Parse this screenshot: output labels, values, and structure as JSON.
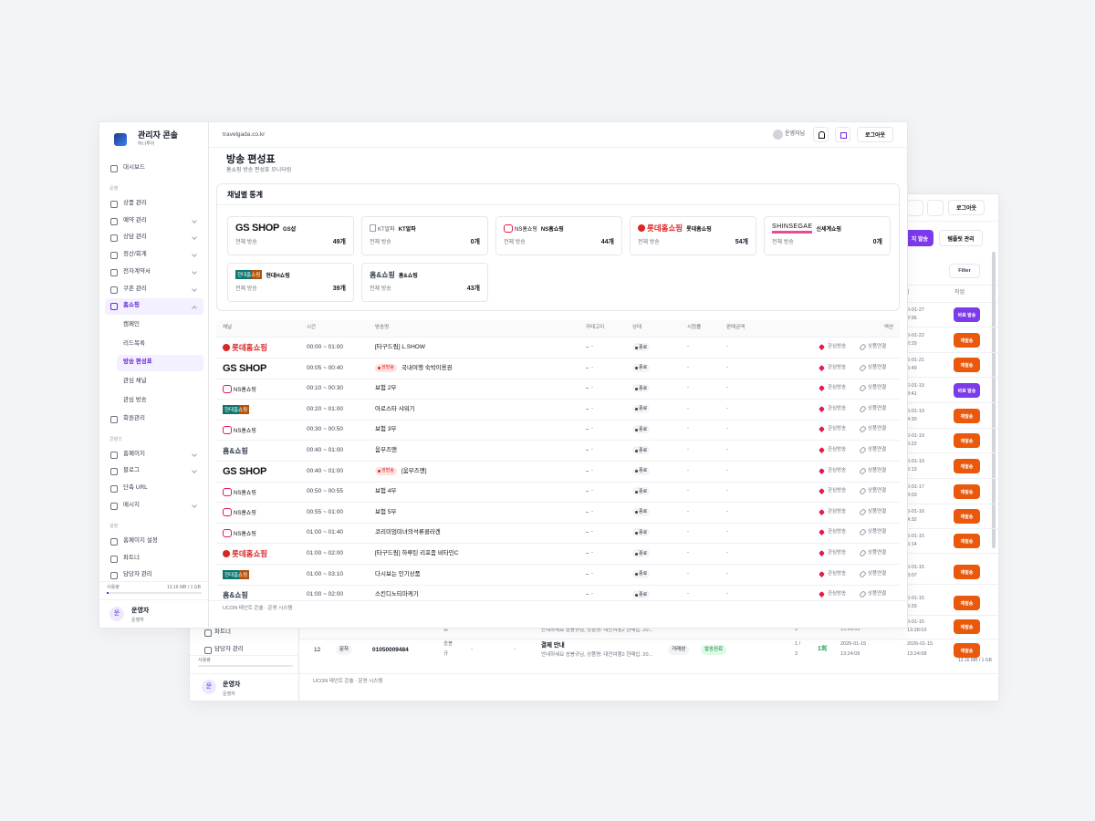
{
  "back_window": {
    "logout_button": "로그아웃",
    "send_button": "지 발송",
    "template_button": "템플릿 관리",
    "filter_button": "Filter",
    "columns": [
      "일",
      "작업"
    ],
    "rows": [
      {
        "date": "6-01-27",
        "time": "2:56",
        "action": "바로 발송"
      },
      {
        "date": "6-01-22",
        "time": "2:29",
        "action": "재발송"
      },
      {
        "date": "6-01-21",
        "time": "5:49",
        "action": "재발송"
      },
      {
        "date": "6-01-19",
        "time": "3:41",
        "action": "바로 발송"
      },
      {
        "date": "6-01-19",
        "time": "4:30",
        "action": "재발송"
      },
      {
        "date": "6-01-19",
        "time": "6:22",
        "action": "재발송"
      },
      {
        "date": "6-01-19",
        "time": "5:13",
        "action": "재발송"
      },
      {
        "date": "6-01-17",
        "time": "8:03",
        "action": "재발송"
      },
      {
        "date": "6-01-16",
        "time": "4:32",
        "action": "재발송"
      },
      {
        "date": "6-01-15",
        "time": "5:14",
        "action": "재발송"
      },
      {
        "date": "6-01-15",
        "time": "8:07",
        "action": "재발송"
      },
      {
        "date": "6-01-15",
        "time": "5:29",
        "action": "재발송"
      },
      {
        "date": "6-01-15",
        "time": "13:28:03",
        "action": "재발송"
      }
    ],
    "partial_row": {
      "agent": "급",
      "preview": "안내하세요 송봉규님, 상품명: 대전여행2 한때입. 20...",
      "count": "3",
      "sent": "13:28:05"
    },
    "full_row": {
      "no": "12",
      "type": "문자",
      "phone": "01050009484",
      "agent_lines": [
        "송봉",
        "규"
      ],
      "col_a": "-",
      "col_b": "-",
      "title": "결제 안내",
      "preview": "안내하세요 송봉규님, 상품명: 대전여행2 한때입. 20...",
      "category": "거래성",
      "status": "발송완료",
      "count_lines": [
        "1 /",
        "3"
      ],
      "retries": "1회",
      "sent": [
        "2026-01-15",
        "13:24:09"
      ],
      "created": [
        "2026-01-15",
        "13:24:08"
      ],
      "action": "재발송"
    },
    "sidebar": {
      "items": [
        "파트너",
        "담당자 관리"
      ],
      "usage_label": "사용량",
      "usage_value": "13.16 MB / 1 GB",
      "avatar": "운",
      "user_name": "운영자",
      "user_role": "운영자"
    },
    "footer": "UCON 테넌트 콘솔 · 운영 시스템"
  },
  "sidebar": {
    "brand_title": "관리자 콘솔",
    "brand_subtitle": "하나투어",
    "dashboard": "대시보드",
    "sections": [
      {
        "title": "운영",
        "items": [
          {
            "label": "상품 관리"
          },
          {
            "label": "예약 관리",
            "chevron": "down"
          },
          {
            "label": "상담 관리",
            "chevron": "down"
          },
          {
            "label": "정산/회계",
            "chevron": "down"
          },
          {
            "label": "전자계약서",
            "chevron": "down"
          },
          {
            "label": "쿠폰 관리",
            "chevron": "down"
          },
          {
            "label": "홈쇼핑",
            "chevron": "up",
            "active": true,
            "children": [
              {
                "label": "캠페인"
              },
              {
                "label": "리드목록"
              },
              {
                "label": "방송 편성표",
                "active": true
              },
              {
                "label": "관심 채널"
              },
              {
                "label": "관심 방송"
              }
            ]
          },
          {
            "label": "회원관리"
          }
        ]
      },
      {
        "title": "콘텐츠",
        "items": [
          {
            "label": "홈페이지",
            "chevron": "down"
          },
          {
            "label": "블로그",
            "chevron": "down"
          },
          {
            "label": "단축 URL"
          },
          {
            "label": "메시지",
            "chevron": "down"
          }
        ]
      },
      {
        "title": "설정",
        "items": [
          {
            "label": "홈페이지 설정"
          },
          {
            "label": "파트너"
          },
          {
            "label": "담당자 관리"
          }
        ]
      }
    ],
    "usage_label": "사용량",
    "usage_value": "13.16 MB / 1 GB",
    "avatar": "운",
    "user_name": "운영자",
    "user_role": "운영자"
  },
  "topbar": {
    "url": "travelgada.co.kr",
    "user": "운영자님",
    "logout": "로그아웃"
  },
  "header": {
    "title": "방송 편성표",
    "subtitle": "홈쇼핑 방송 편성표 모니터링"
  },
  "stats": {
    "title": "채널별 통계",
    "total_label": "전체 방송",
    "channels": [
      {
        "logo": "GS SHOP",
        "name": "GS샵",
        "count": "49개"
      },
      {
        "logo": "KT알파",
        "name": "KT알파",
        "count": "0개"
      },
      {
        "logo": "NS홈쇼핑",
        "name": "NS홈쇼핑",
        "count": "44개"
      },
      {
        "logo": "롯데홈쇼핑",
        "name": "롯데홈쇼핑",
        "count": "54개"
      },
      {
        "logo": "SHINSEGAE",
        "name": "신세계쇼핑",
        "count": "0개"
      },
      {
        "logo": "현대홈쇼핑",
        "name": "현대H쇼핑",
        "count": "39개"
      },
      {
        "logo": "홈&쇼핑",
        "name": "홈&쇼핑",
        "count": "43개"
      }
    ]
  },
  "table": {
    "columns": [
      "채널",
      "시간",
      "방송명",
      "카테고리",
      "상태",
      "시청률",
      "판매금액",
      "액션"
    ],
    "action_labels": [
      "관심방송",
      "상품연결"
    ],
    "rows": [
      {
        "channel": "롯데홈쇼핑",
        "time": "00:00 ~ 01:00",
        "name": "[타구드림] L.SHOW",
        "category": "-",
        "status": "종료",
        "rating": "-",
        "sales": "-"
      },
      {
        "channel": "GS SHOP",
        "time": "00:05 ~ 00:40",
        "live": "생방송",
        "name": "국내여행 숙박이용권",
        "category": "-",
        "status": "종료",
        "rating": "-",
        "sales": "-"
      },
      {
        "channel": "NS홈쇼핑",
        "time": "00:10 ~ 00:30",
        "name": "보험 2부",
        "category": "-",
        "status": "종료",
        "rating": "-",
        "sales": "-"
      },
      {
        "channel": "현대홈쇼핑",
        "time": "00:20 ~ 01:00",
        "name": "아로스타 샤워기",
        "category": "-",
        "status": "종료",
        "rating": "-",
        "sales": "-"
      },
      {
        "channel": "NS홈쇼핑",
        "time": "00:30 ~ 00:50",
        "name": "보험 3부",
        "category": "-",
        "status": "종료",
        "rating": "-",
        "sales": "-"
      },
      {
        "channel": "홈&쇼핑",
        "time": "00:40 ~ 01:00",
        "name": "움부즈맨",
        "category": "-",
        "status": "종료",
        "rating": "-",
        "sales": "-"
      },
      {
        "channel": "GS SHOP",
        "time": "00:40 ~ 01:00",
        "live": "생방송",
        "name": "[움부즈맨]",
        "category": "-",
        "status": "종료",
        "rating": "-",
        "sales": "-"
      },
      {
        "channel": "NS홈쇼핑",
        "time": "00:50 ~ 00:55",
        "name": "보험 4부",
        "category": "-",
        "status": "종료",
        "rating": "-",
        "sales": "-"
      },
      {
        "channel": "NS홈쇼핑",
        "time": "00:55 ~ 01:00",
        "name": "보험 5부",
        "category": "-",
        "status": "종료",
        "rating": "-",
        "sales": "-"
      },
      {
        "channel": "NS홈쇼핑",
        "time": "01:00 ~ 01:40",
        "name": "코리미엄미녀의석류콜라겐",
        "category": "-",
        "status": "종료",
        "rating": "-",
        "sales": "-"
      },
      {
        "channel": "롯데홈쇼핑",
        "time": "01:00 ~ 02:00",
        "name": "[타구드림] 하루틴 리포좀 비타민C",
        "category": "-",
        "status": "종료",
        "rating": "-",
        "sales": "-"
      },
      {
        "channel": "현대홈쇼핑",
        "time": "01:00 ~ 03:10",
        "name": "다시보는 인기상품",
        "category": "-",
        "status": "종료",
        "rating": "-",
        "sales": "-"
      },
      {
        "channel": "홈&쇼핑",
        "time": "01:00 ~ 02:00",
        "name": "스킨디노티마케기",
        "category": "-",
        "status": "종료",
        "rating": "-",
        "sales": "-"
      }
    ]
  },
  "footer": "UCON 테넌트 콘솔 · 운영 시스템"
}
